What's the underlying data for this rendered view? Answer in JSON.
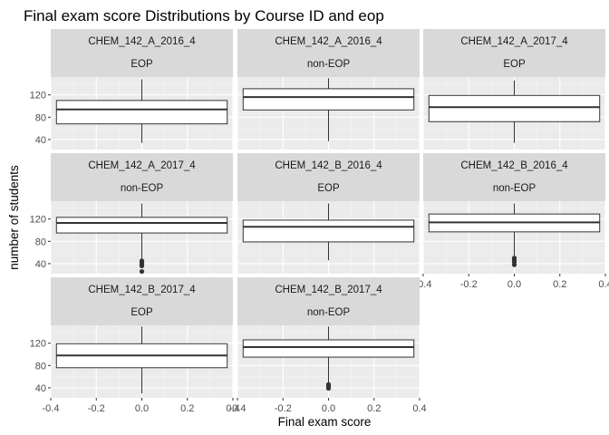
{
  "chart_data": {
    "type": "boxplot",
    "title": "Final exam score Distributions by Course ID and eop",
    "xlabel": "Final exam score",
    "ylabel": "number of students",
    "xlim": [
      -0.4,
      0.4
    ],
    "ylim": [
      22,
      152
    ],
    "x_ticks": [
      "-0.4",
      "-0.2",
      "0.0",
      "0.2",
      "0.4"
    ],
    "y_ticks": [
      "40",
      "80",
      "120"
    ],
    "facet_layout": "3 columns x 3 rows",
    "grid": true,
    "panels": [
      {
        "course": "CHEM_142_A_2016_4",
        "eop": "EOP",
        "q1": 68,
        "median": 94,
        "q3": 110,
        "lower_whisker": 34,
        "upper_whisker": 148,
        "outliers": []
      },
      {
        "course": "CHEM_142_A_2016_4",
        "eop": "non-EOP",
        "q1": 93,
        "median": 116,
        "q3": 131,
        "lower_whisker": 37,
        "upper_whisker": 150,
        "outliers": []
      },
      {
        "course": "CHEM_142_A_2017_4",
        "eop": "EOP",
        "q1": 72,
        "median": 98,
        "q3": 119,
        "lower_whisker": 34,
        "upper_whisker": 146,
        "outliers": []
      },
      {
        "course": "CHEM_142_A_2017_4",
        "eop": "non-EOP",
        "q1": 95,
        "median": 113,
        "q3": 123,
        "lower_whisker": 47,
        "upper_whisker": 148,
        "outliers": [
          26,
          36,
          39,
          42,
          45
        ]
      },
      {
        "course": "CHEM_142_B_2016_4",
        "eop": "EOP",
        "q1": 79,
        "median": 106,
        "q3": 118,
        "lower_whisker": 46,
        "upper_whisker": 148,
        "outliers": []
      },
      {
        "course": "CHEM_142_B_2016_4",
        "eop": "non-EOP",
        "q1": 97,
        "median": 114,
        "q3": 129,
        "lower_whisker": 54,
        "upper_whisker": 148,
        "outliers": [
          38,
          43,
          47,
          50
        ]
      },
      {
        "course": "CHEM_142_B_2017_4",
        "eop": "EOP",
        "q1": 76,
        "median": 98,
        "q3": 119,
        "lower_whisker": 30,
        "upper_whisker": 150,
        "outliers": []
      },
      {
        "course": "CHEM_142_B_2017_4",
        "eop": "non-EOP",
        "q1": 95,
        "median": 113,
        "q3": 126,
        "lower_whisker": 48,
        "upper_whisker": 150,
        "outliers": [
          39,
          42,
          44,
          46
        ]
      }
    ]
  }
}
